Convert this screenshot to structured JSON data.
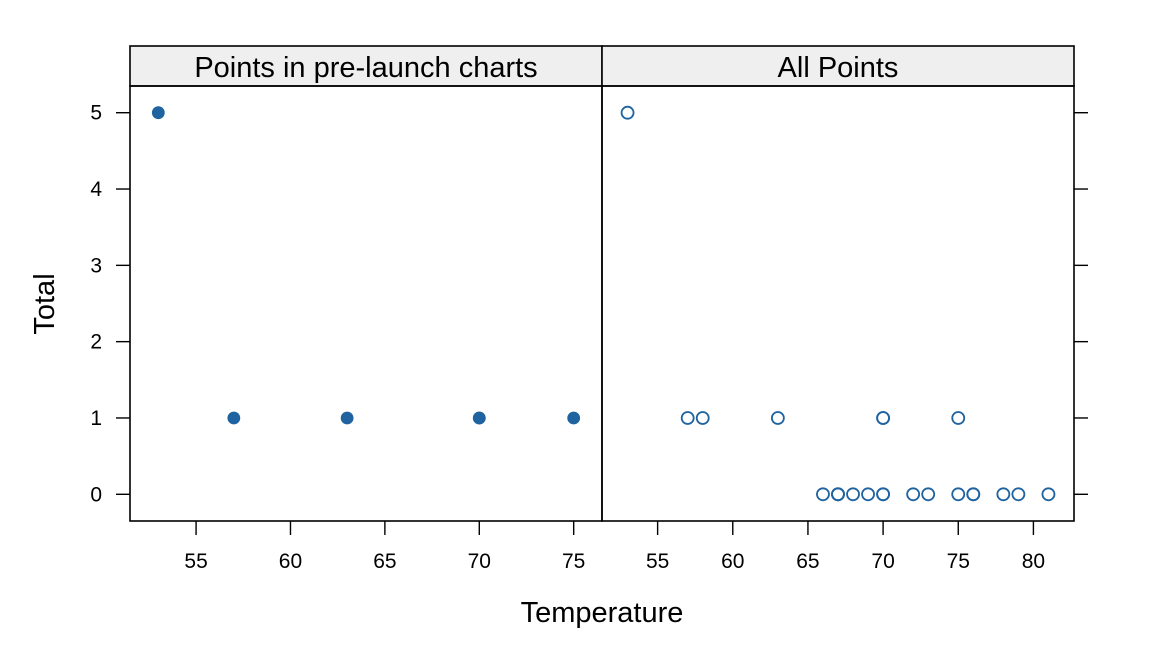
{
  "chart_data": {
    "type": "scatter",
    "xlabel": "Temperature",
    "ylabel": "Total",
    "ylim": [
      -0.35,
      5.35
    ],
    "y_ticks": [
      0,
      1,
      2,
      3,
      4,
      5
    ],
    "marker_color": "#1F63A0",
    "strip_color": "#EFEFEF",
    "panels": [
      {
        "title": "Points in pre-launch charts",
        "marker": "filled-circle",
        "xlim": [
          51.5,
          76.5
        ],
        "x_ticks": [
          55,
          60,
          65,
          70,
          75
        ],
        "points": [
          {
            "x": 53,
            "y": 5
          },
          {
            "x": 57,
            "y": 1
          },
          {
            "x": 63,
            "y": 1
          },
          {
            "x": 70,
            "y": 1
          },
          {
            "x": 70,
            "y": 1
          },
          {
            "x": 75,
            "y": 1
          }
        ]
      },
      {
        "title": "All Points",
        "marker": "open-circle",
        "xlim": [
          51.3,
          82.7
        ],
        "x_ticks": [
          55,
          60,
          65,
          70,
          75,
          80
        ],
        "points": [
          {
            "x": 53,
            "y": 5
          },
          {
            "x": 57,
            "y": 1
          },
          {
            "x": 58,
            "y": 1
          },
          {
            "x": 63,
            "y": 1
          },
          {
            "x": 70,
            "y": 1
          },
          {
            "x": 70,
            "y": 1
          },
          {
            "x": 75,
            "y": 1
          },
          {
            "x": 66,
            "y": 0
          },
          {
            "x": 67,
            "y": 0
          },
          {
            "x": 67,
            "y": 0
          },
          {
            "x": 67,
            "y": 0
          },
          {
            "x": 68,
            "y": 0
          },
          {
            "x": 69,
            "y": 0
          },
          {
            "x": 70,
            "y": 0
          },
          {
            "x": 70,
            "y": 0
          },
          {
            "x": 72,
            "y": 0
          },
          {
            "x": 73,
            "y": 0
          },
          {
            "x": 75,
            "y": 0
          },
          {
            "x": 76,
            "y": 0
          },
          {
            "x": 76,
            "y": 0
          },
          {
            "x": 78,
            "y": 0
          },
          {
            "x": 79,
            "y": 0
          },
          {
            "x": 81,
            "y": 0
          }
        ]
      }
    ]
  }
}
